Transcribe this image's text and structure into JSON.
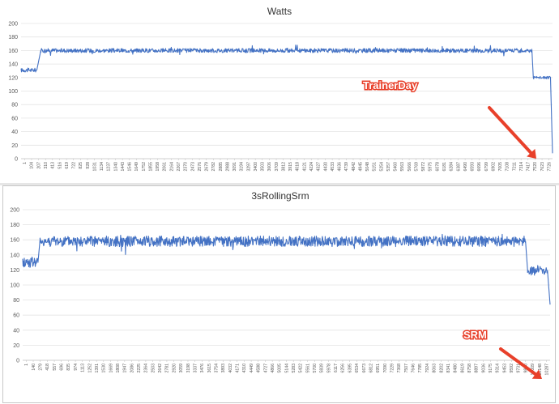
{
  "charts": [
    {
      "title": "Watts",
      "annotation": "TrainerDay",
      "chart_data": {
        "type": "line",
        "title": "Watts",
        "ylim": [
          0,
          200
        ],
        "yticks": [
          0,
          20,
          40,
          60,
          80,
          100,
          120,
          140,
          160,
          180,
          200
        ],
        "grid": true,
        "legend": "none",
        "series_color": "#4472c4",
        "x_tick_labels": [
          "1",
          "104",
          "207",
          "310",
          "413",
          "516",
          "619",
          "722",
          "825",
          "928",
          "1031",
          "1134",
          "1237",
          "1340",
          "1443",
          "1546",
          "1649",
          "1752",
          "1855",
          "1958",
          "2061",
          "2164",
          "2267",
          "2370",
          "2473",
          "2576",
          "2679",
          "2782",
          "2885",
          "2988",
          "3091",
          "3194",
          "3297",
          "3400",
          "3503",
          "3606",
          "3709",
          "3812",
          "3915",
          "4018",
          "4121",
          "4224",
          "4327",
          "4430",
          "4533",
          "4636",
          "4739",
          "4842",
          "4945",
          "5048",
          "5151",
          "5254",
          "5357",
          "5460",
          "5563",
          "5666",
          "5769",
          "5872",
          "5975",
          "6078",
          "6181",
          "6284",
          "6387",
          "6490",
          "6593",
          "6696",
          "6799",
          "6902",
          "7005",
          "7108",
          "7211",
          "7314",
          "7417",
          "7520",
          "7623",
          "7726"
        ],
        "x_range": [
          1,
          7760
        ],
        "segments": [
          {
            "x_start": 1,
            "x_end": 230,
            "mean": 131,
            "noise": 3
          },
          {
            "x_start": 230,
            "x_end": 290,
            "ramp_to": 160
          },
          {
            "x_start": 290,
            "x_end": 7460,
            "mean": 160,
            "noise": 3
          },
          {
            "x_start": 7460,
            "x_end": 7480,
            "ramp_to": 120
          },
          {
            "x_start": 7480,
            "x_end": 7730,
            "mean": 120,
            "noise": 2
          },
          {
            "x_start": 7730,
            "x_end": 7760,
            "ramp_to": 8
          }
        ]
      }
    },
    {
      "title": "3sRollingSrm",
      "annotation": "SRM",
      "chart_data": {
        "type": "line",
        "title": "3sRollingSrm",
        "ylim": [
          0,
          200
        ],
        "yticks": [
          0,
          20,
          40,
          60,
          80,
          100,
          120,
          140,
          160,
          180,
          200
        ],
        "grid": true,
        "legend": "none",
        "series_color": "#4472c4",
        "x_tick_labels": [
          "1",
          "140",
          "279",
          "418",
          "557",
          "696",
          "835",
          "974",
          "1113",
          "1252",
          "1391",
          "1530",
          "1669",
          "1808",
          "1947",
          "2086",
          "2225",
          "2364",
          "2503",
          "2642",
          "2781",
          "2920",
          "3059",
          "3198",
          "3337",
          "3476",
          "3615",
          "3754",
          "3893",
          "4032",
          "4171",
          "4310",
          "4449",
          "4588",
          "4727",
          "4866",
          "5005",
          "5144",
          "5283",
          "5422",
          "5561",
          "5700",
          "5839",
          "5978",
          "6117",
          "6256",
          "6395",
          "6534",
          "6673",
          "6812",
          "6951",
          "7090",
          "7229",
          "7368",
          "7507",
          "7646",
          "7785",
          "7924",
          "8063",
          "8202",
          "8341",
          "8480",
          "8619",
          "8758",
          "8897",
          "9036",
          "9175",
          "9314",
          "9453",
          "9592",
          "9731",
          "9870",
          "10009",
          "10148",
          "10287"
        ],
        "x_range": [
          1,
          10300
        ],
        "segments": [
          {
            "x_start": 1,
            "x_end": 300,
            "mean": 130,
            "noise": 7
          },
          {
            "x_start": 300,
            "x_end": 340,
            "ramp_to": 160
          },
          {
            "x_start": 340,
            "x_end": 9820,
            "mean": 158,
            "noise": 7
          },
          {
            "x_start": 9820,
            "x_end": 9860,
            "ramp_to": 120
          },
          {
            "x_start": 9860,
            "x_end": 10250,
            "mean": 119,
            "noise": 6
          },
          {
            "x_start": 10250,
            "x_end": 10300,
            "ramp_to": 74
          }
        ]
      }
    }
  ]
}
